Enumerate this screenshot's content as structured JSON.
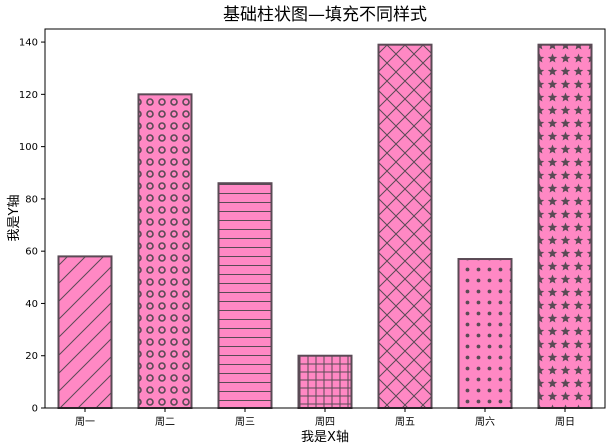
{
  "chart_data": {
    "type": "bar",
    "title": "基础柱状图—填充不同样式",
    "xlabel": "我是X轴",
    "ylabel": "我是Y轴",
    "categories": [
      "周一",
      "周二",
      "周三",
      "周四",
      "周五",
      "周六",
      "周日"
    ],
    "values": [
      58,
      120,
      86,
      20,
      139,
      57,
      139
    ],
    "ylim": [
      0,
      145
    ],
    "yticks": [
      0,
      20,
      40,
      60,
      80,
      100,
      120,
      140
    ],
    "ytick_labels": [
      "0",
      "20",
      "40",
      "60",
      "80",
      "100",
      "120",
      "140"
    ],
    "hatches": [
      "diagonal",
      "circles",
      "horizontal",
      "grid",
      "crosshatch",
      "dots",
      "stars"
    ],
    "grid": false,
    "colors": {
      "bar_fill": "#ff88c4",
      "bar_edge": "#5a4a55",
      "hatch": "#5a4a55",
      "axis": "#000000",
      "background": "#ffffff"
    }
  }
}
